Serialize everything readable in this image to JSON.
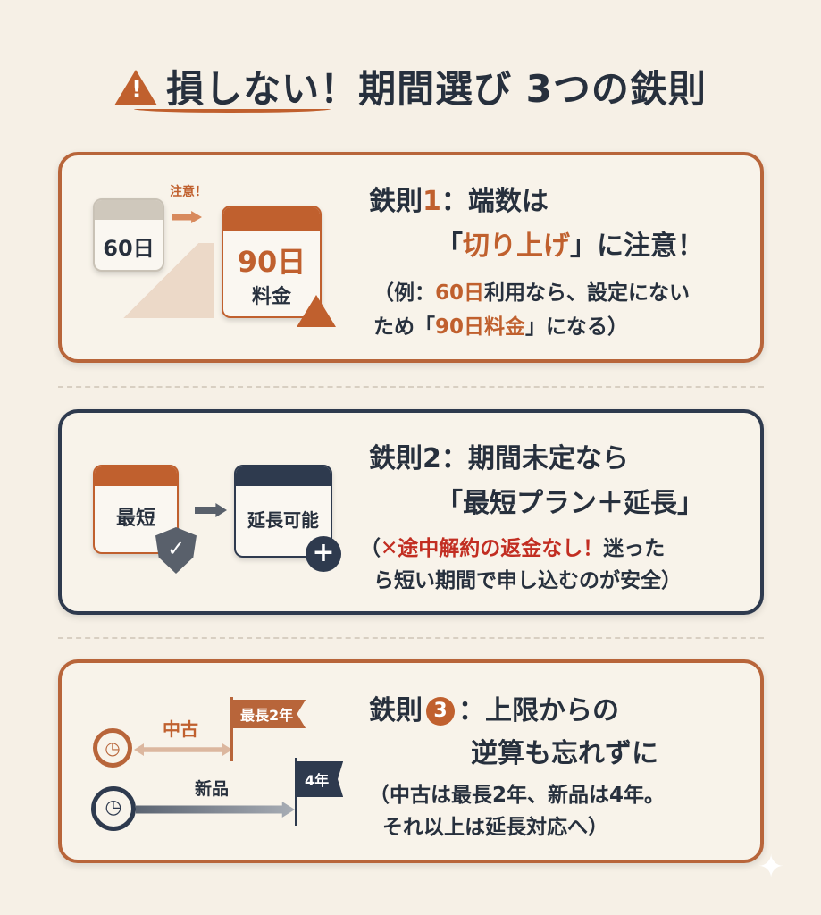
{
  "title": {
    "text": "損しない！期間選び 3つの鉄則",
    "icon": "warning-icon"
  },
  "colors": {
    "accent": "#c0602e",
    "navy": "#2e3a4e",
    "warning_red": "#c22e22",
    "background": "#f6f0e6"
  },
  "rule1": {
    "heading_prefix": "鉄則",
    "number": "1",
    "heading_rest": "：端数は",
    "line2_open": "「",
    "line2_em": "切り上げ",
    "line2_close": "」",
    "line2_rest": "に注意！",
    "note_a": "（例：",
    "note_em1": "60日",
    "note_b": "利用なら、設定にない",
    "note_c": "ため「",
    "note_em2": "90日料金",
    "note_d": "」になる）",
    "illus": {
      "cal_from": "60日",
      "arrow_label": "注意！",
      "cal_to_line1": "90日",
      "cal_to_line2": "料金"
    }
  },
  "rule2": {
    "heading": "鉄則2：期間未定なら",
    "line2": "「最短プラン＋延長」",
    "note_em": "✕途中解約の返金なし！",
    "note_a": "（",
    "note_b": "迷った",
    "note_c": "ら短い期間で申し込むのが安全）",
    "illus": {
      "cal_from": "最短",
      "cal_to": "延長可能"
    }
  },
  "rule3": {
    "heading_prefix": "鉄則",
    "number": "3",
    "heading_rest": "：上限からの",
    "line2": "逆算も忘れずに",
    "note1": "（中古は最長2年、新品は4年。",
    "note2": "それ以上は延長対応へ）",
    "illus": {
      "used_label": "中古",
      "used_flag": "最長2年",
      "new_label": "新品",
      "new_flag": "4年"
    }
  }
}
